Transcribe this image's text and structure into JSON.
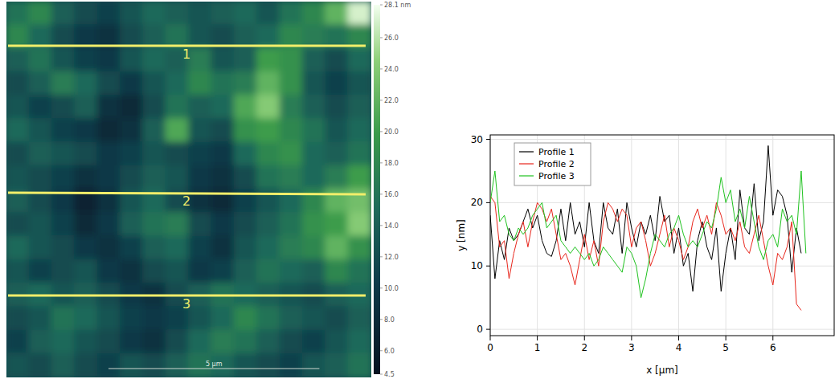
{
  "chart_data": [
    {
      "type": "heatmap",
      "cells": [
        [
          16,
          18,
          14,
          12,
          11,
          13,
          15,
          14,
          13,
          14,
          15,
          13,
          16,
          18,
          22,
          27
        ],
        [
          18,
          15,
          12,
          10,
          9,
          12,
          14,
          16,
          13,
          12,
          14,
          15,
          18,
          17,
          16,
          18
        ],
        [
          14,
          16,
          13,
          11,
          10,
          13,
          15,
          14,
          17,
          13,
          14,
          20,
          19,
          14,
          12,
          15
        ],
        [
          12,
          14,
          17,
          15,
          12,
          10,
          13,
          15,
          18,
          16,
          17,
          22,
          19,
          13,
          11,
          13
        ],
        [
          13,
          11,
          12,
          14,
          9,
          8,
          12,
          16,
          14,
          15,
          21,
          24,
          17,
          14,
          12,
          14
        ],
        [
          15,
          13,
          11,
          10,
          8,
          9,
          14,
          21,
          13,
          12,
          19,
          20,
          18,
          16,
          13,
          15
        ],
        [
          12,
          14,
          13,
          12,
          10,
          11,
          13,
          12,
          11,
          10,
          15,
          18,
          19,
          15,
          14,
          16
        ],
        [
          13,
          12,
          11,
          9,
          10,
          12,
          14,
          13,
          10,
          9,
          12,
          16,
          17,
          15,
          17,
          20
        ],
        [
          14,
          12,
          10,
          7,
          9,
          13,
          15,
          12,
          9,
          8,
          11,
          13,
          15,
          18,
          22,
          23
        ],
        [
          12,
          13,
          11,
          8,
          10,
          14,
          16,
          17,
          12,
          10,
          12,
          14,
          16,
          19,
          20,
          24
        ],
        [
          15,
          13,
          12,
          10,
          9,
          11,
          14,
          15,
          11,
          9,
          13,
          15,
          17,
          18,
          22,
          19
        ],
        [
          13,
          11,
          12,
          13,
          10,
          9,
          12,
          13,
          10,
          11,
          14,
          16,
          15,
          14,
          18,
          16
        ],
        [
          14,
          15,
          13,
          14,
          12,
          10,
          9,
          12,
          14,
          16,
          15,
          14,
          13,
          12,
          14,
          15
        ],
        [
          12,
          13,
          16,
          15,
          13,
          11,
          10,
          11,
          13,
          15,
          18,
          16,
          14,
          13,
          12,
          14
        ],
        [
          11,
          14,
          15,
          13,
          12,
          10,
          9,
          12,
          15,
          17,
          16,
          14,
          12,
          11,
          13,
          15
        ],
        [
          13,
          12,
          14,
          12,
          11,
          13,
          12,
          14,
          16,
          15,
          13,
          12,
          11,
          13,
          14,
          16
        ]
      ],
      "colorbar_range": [
        4.5,
        28.1
      ],
      "colorbar_ticks": [
        4.5,
        {
          "value": 6,
          "label": "6.0"
        },
        {
          "value": 8,
          "label": "8.0"
        },
        {
          "value": 10,
          "label": "10.0"
        },
        {
          "value": 12,
          "label": "12.0"
        },
        {
          "value": 14,
          "label": "14.0"
        },
        {
          "value": 16,
          "label": "16.0"
        },
        {
          "value": 18,
          "label": "18.0"
        },
        {
          "value": 20,
          "label": "20.0"
        },
        {
          "value": 22,
          "label": "22.0"
        },
        {
          "value": 24,
          "label": "24.0"
        },
        {
          "value": 26,
          "label": "26.0"
        },
        {
          "value": 28.1,
          "label": "28.1 nm"
        }
      ],
      "annotations": [
        "1",
        "2",
        "3"
      ],
      "xlim": [
        0,
        8.65
      ],
      "scale_bar": {
        "value": 5,
        "label": "5 µm"
      },
      "tick_labels": false
    },
    {
      "type": "line",
      "x": [
        0,
        0.1,
        0.2,
        0.3,
        0.4,
        0.5,
        0.6,
        0.7,
        0.8,
        0.9,
        1,
        1.1,
        1.2,
        1.3,
        1.4,
        1.5,
        1.6,
        1.7,
        1.8,
        1.9,
        2,
        2.1,
        2.2,
        2.3,
        2.4,
        2.5,
        2.6,
        2.7,
        2.8,
        2.9,
        3,
        3.1,
        3.2,
        3.3,
        3.4,
        3.5,
        3.6,
        3.7,
        3.8,
        3.9,
        4,
        4.1,
        4.2,
        4.3,
        4.4,
        4.5,
        4.6,
        4.7,
        4.8,
        4.9,
        5,
        5.1,
        5.2,
        5.3,
        5.4,
        5.5,
        5.6,
        5.7,
        5.8,
        5.9,
        6,
        6.1,
        6.2,
        6.3,
        6.4,
        6.5,
        6.6,
        6.7
      ],
      "series": [
        {
          "name": "Profile 1",
          "color": "#000000",
          "values": [
            18,
            8,
            14,
            11,
            16,
            14,
            15,
            17,
            19,
            16,
            18,
            14,
            12,
            11.5,
            14,
            19,
            14,
            20,
            15,
            17,
            13,
            20,
            14,
            12,
            20,
            16,
            15,
            19,
            12,
            20,
            16,
            13,
            17,
            15,
            18,
            14,
            21,
            17,
            18,
            12,
            16,
            10,
            12,
            6,
            14,
            17,
            13,
            11,
            16,
            6,
            12,
            16,
            11,
            22,
            16,
            15,
            23,
            14,
            17,
            29,
            18,
            22,
            21,
            18,
            9,
            16,
            12,
            null
          ]
        },
        {
          "name": "Profile 2",
          "color": "#e8261c",
          "values": [
            21,
            20,
            13,
            14,
            8,
            12,
            15,
            17,
            13,
            17,
            20,
            19,
            17,
            19,
            15,
            11,
            12,
            10,
            7,
            11,
            15,
            11,
            14,
            10,
            17,
            20,
            19,
            17,
            19,
            18,
            13,
            16,
            17,
            14,
            10,
            12,
            15,
            18,
            13,
            16,
            14,
            11,
            13,
            17,
            19,
            16,
            18,
            15,
            20,
            18,
            15,
            16,
            14,
            17,
            13,
            12,
            15,
            18,
            14,
            10,
            7,
            12,
            11,
            13,
            17,
            4,
            3,
            null
          ]
        },
        {
          "name": "Profile 3",
          "color": "#1fc21f",
          "values": [
            20,
            25,
            17,
            18,
            15,
            14,
            16,
            15,
            16,
            18,
            19,
            20,
            16,
            17,
            18,
            14,
            13,
            12,
            13,
            12,
            11,
            12,
            10,
            11,
            13,
            12,
            11,
            10,
            9,
            13,
            12,
            10,
            5,
            8,
            12,
            15,
            14,
            13,
            15,
            16,
            18,
            15,
            13,
            14,
            13,
            15,
            17,
            16,
            19,
            24,
            20,
            22,
            17,
            19,
            16,
            21,
            17,
            13,
            11,
            14,
            15,
            13,
            19,
            17,
            18,
            15,
            25,
            12
          ]
        }
      ],
      "xlim": [
        0,
        7.3
      ],
      "ylim": [
        -1,
        30.7
      ],
      "xticks": [
        0,
        1,
        2,
        3,
        4,
        5,
        6
      ],
      "yticks": [
        0,
        10,
        20,
        30
      ],
      "x_label": "x [µm]",
      "y_label": "y [nm]",
      "grid": true,
      "legend": "upper left"
    }
  ]
}
